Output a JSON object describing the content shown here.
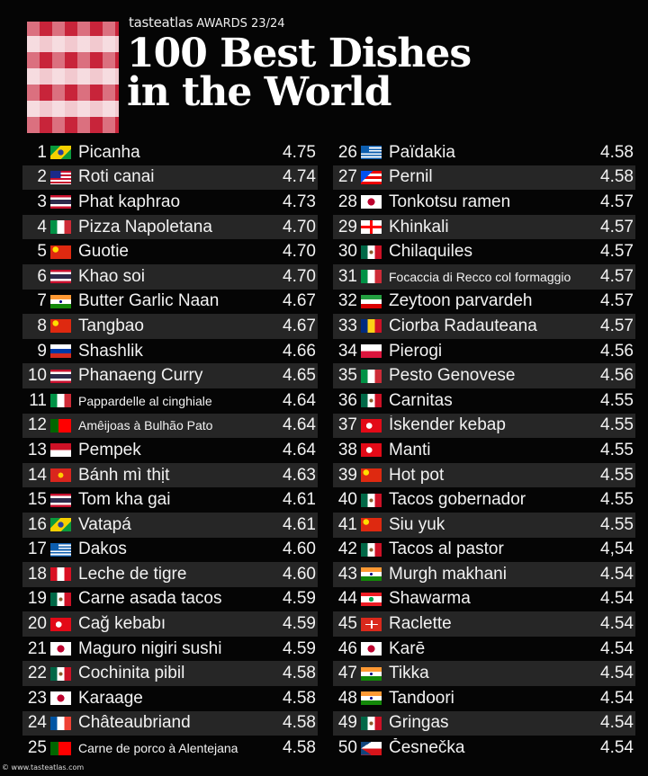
{
  "header": {
    "brand": "tasteatlas",
    "award": "AWARDS 23/24",
    "title_line1": "100 Best Dishes",
    "title_line2": "in the World"
  },
  "watermark": "© www.tasteatlas.com",
  "left": [
    {
      "rank": "1",
      "country": "BR",
      "name": "Picanha",
      "score": "4.75"
    },
    {
      "rank": "2",
      "country": "MY",
      "name": "Roti canai",
      "score": "4.74"
    },
    {
      "rank": "3",
      "country": "TH",
      "name": "Phat kaphrao",
      "score": "4.73"
    },
    {
      "rank": "4",
      "country": "IT",
      "name": "Pizza Napoletana",
      "score": "4.70"
    },
    {
      "rank": "5",
      "country": "CN",
      "name": "Guotie",
      "score": "4.70"
    },
    {
      "rank": "6",
      "country": "TH",
      "name": "Khao soi",
      "score": "4.70"
    },
    {
      "rank": "7",
      "country": "IN",
      "name": "Butter Garlic Naan",
      "score": "4.67"
    },
    {
      "rank": "8",
      "country": "CN",
      "name": "Tangbao",
      "score": "4.67"
    },
    {
      "rank": "9",
      "country": "RU",
      "name": "Shashlik",
      "score": "4.66"
    },
    {
      "rank": "10",
      "country": "TH",
      "name": "Phanaeng Curry",
      "score": "4.65"
    },
    {
      "rank": "11",
      "country": "IT",
      "name": "Pappardelle al cinghiale",
      "score": "4.64",
      "small": true
    },
    {
      "rank": "12",
      "country": "PT",
      "name": "Amêijoas à Bulhão Pato",
      "score": "4.64",
      "small": true
    },
    {
      "rank": "13",
      "country": "ID",
      "name": "Pempek",
      "score": "4.64"
    },
    {
      "rank": "14",
      "country": "VN",
      "name": "Bánh mì thịt",
      "score": "4.63"
    },
    {
      "rank": "15",
      "country": "TH",
      "name": "Tom kha gai",
      "score": "4.61"
    },
    {
      "rank": "16",
      "country": "BR",
      "name": "Vatapá",
      "score": "4.61"
    },
    {
      "rank": "17",
      "country": "GR",
      "name": "Dakos",
      "score": "4.60"
    },
    {
      "rank": "18",
      "country": "PE",
      "name": "Leche de tigre",
      "score": "4.60"
    },
    {
      "rank": "19",
      "country": "MX",
      "name": "Carne asada tacos",
      "score": "4.59"
    },
    {
      "rank": "20",
      "country": "TR",
      "name": "Cağ kebabı",
      "score": "4.59"
    },
    {
      "rank": "21",
      "country": "JP",
      "name": "Maguro nigiri sushi",
      "score": "4.59"
    },
    {
      "rank": "22",
      "country": "MX",
      "name": "Cochinita pibil",
      "score": "4.58"
    },
    {
      "rank": "23",
      "country": "JP",
      "name": "Karaage",
      "score": "4.58"
    },
    {
      "rank": "24",
      "country": "FR",
      "name": "Châteaubriand",
      "score": "4.58"
    },
    {
      "rank": "25",
      "country": "PT",
      "name": "Carne de porco à Alentejana",
      "score": "4.58",
      "small": true
    }
  ],
  "right": [
    {
      "rank": "26",
      "country": "GR",
      "name": "Païdakia",
      "score": "4.58"
    },
    {
      "rank": "27",
      "country": "PR",
      "name": "Pernil",
      "score": "4.58"
    },
    {
      "rank": "28",
      "country": "JP",
      "name": "Tonkotsu ramen",
      "score": "4.57"
    },
    {
      "rank": "29",
      "country": "GE",
      "name": "Khinkali",
      "score": "4.57"
    },
    {
      "rank": "30",
      "country": "MX",
      "name": "Chilaquiles",
      "score": "4.57"
    },
    {
      "rank": "31",
      "country": "IT",
      "name": "Focaccia di Recco col formaggio",
      "score": "4.57",
      "small": true
    },
    {
      "rank": "32",
      "country": "IR",
      "name": "Zeytoon parvardeh",
      "score": "4.57"
    },
    {
      "rank": "33",
      "country": "RO",
      "name": "Ciorba Radauteana",
      "score": "4.57"
    },
    {
      "rank": "34",
      "country": "PL",
      "name": "Pierogi",
      "score": "4.56"
    },
    {
      "rank": "35",
      "country": "IT",
      "name": "Pesto Genovese",
      "score": "4.56"
    },
    {
      "rank": "36",
      "country": "MX",
      "name": "Carnitas",
      "score": "4.55"
    },
    {
      "rank": "37",
      "country": "TR",
      "name": "İskender kebap",
      "score": "4.55"
    },
    {
      "rank": "38",
      "country": "TR",
      "name": "Manti",
      "score": "4.55"
    },
    {
      "rank": "39",
      "country": "CN",
      "name": "Hot pot",
      "score": "4.55"
    },
    {
      "rank": "40",
      "country": "MX",
      "name": "Tacos gobernador",
      "score": "4.55"
    },
    {
      "rank": "41",
      "country": "CN",
      "name": "Siu yuk",
      "score": "4.55"
    },
    {
      "rank": "42",
      "country": "MX",
      "name": "Tacos al pastor",
      "score": "4,54"
    },
    {
      "rank": "43",
      "country": "IN",
      "name": "Murgh makhani",
      "score": "4.54"
    },
    {
      "rank": "44",
      "country": "LB",
      "name": "Shawarma",
      "score": "4.54"
    },
    {
      "rank": "45",
      "country": "CH",
      "name": "Raclette",
      "score": "4.54"
    },
    {
      "rank": "46",
      "country": "JP",
      "name": "Karē",
      "score": "4.54"
    },
    {
      "rank": "47",
      "country": "IN",
      "name": "Tikka",
      "score": "4.54"
    },
    {
      "rank": "48",
      "country": "IN",
      "name": "Tandoori",
      "score": "4.54"
    },
    {
      "rank": "49",
      "country": "MX",
      "name": "Gringas",
      "score": "4.54"
    },
    {
      "rank": "50",
      "country": "CZ",
      "name": "Česnečka",
      "score": "4.54"
    }
  ]
}
